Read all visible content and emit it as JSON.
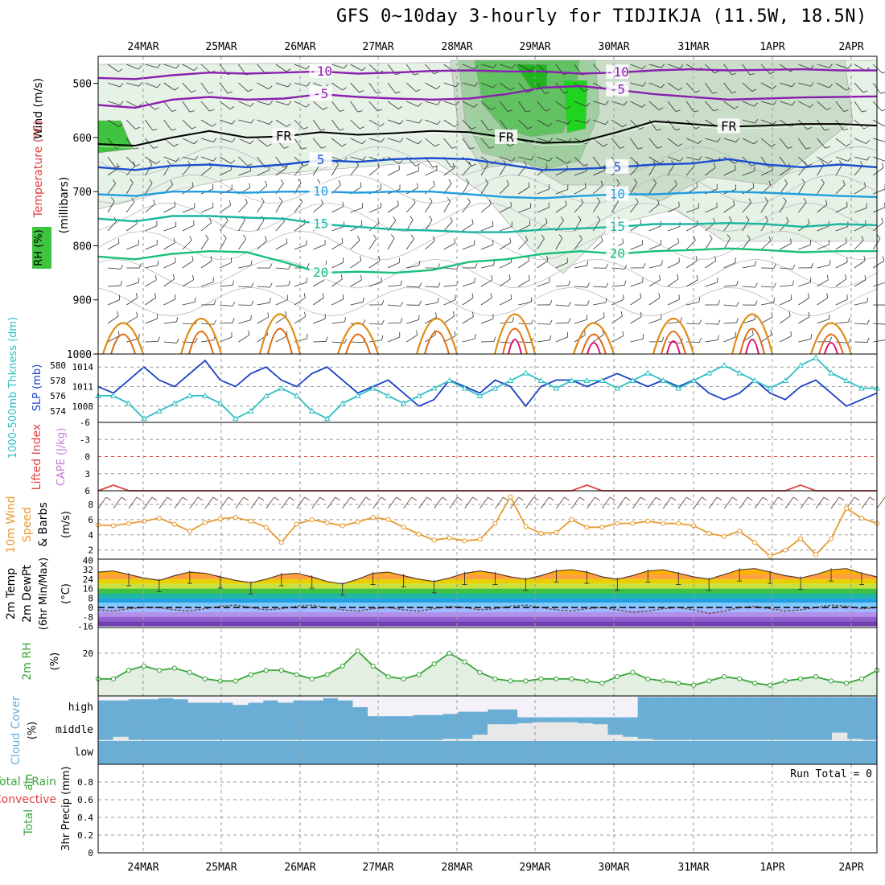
{
  "title": "GFS 0~10day 3-hourly for TIDJIKJA (11.5W, 18.5N)",
  "dates": [
    "24MAR",
    "25MAR",
    "26MAR",
    "27MAR",
    "28MAR",
    "29MAR",
    "30MAR",
    "31MAR",
    "1APR",
    "2APR"
  ],
  "colors": {
    "purple": "#8a1fb0",
    "black": "#000000",
    "blue": "#1a4ed0",
    "cyan": "#1f9ee0",
    "teal": "#19b6a0",
    "green": "#17c07a",
    "orange": "#e08a10",
    "dorange": "#e06a10",
    "magenta": "#e0106a",
    "slp": "#1a3fc7",
    "thick": "#2bbfc4",
    "cape": "#e04040",
    "wind": "#e89a30",
    "rh": "#3aa53a",
    "cloud": "#6aaed6",
    "precip": "#3aa53a"
  },
  "chart_data": [
    {
      "type": "contour",
      "panel": "upper-air",
      "ylabel_parts": [
        "Wind (m/s)",
        "Temperature (°C)",
        "RH (%)",
        "(millibars)"
      ],
      "ylabel_wind": "Wind (m/s)",
      "ylabel_temp": "Temperature (°C)",
      "ylabel_rh": "RH (%)",
      "ylabel_units": "(millibars)",
      "ylim": [
        1000,
        450
      ],
      "yticks": [
        500,
        600,
        700,
        800,
        900,
        1000
      ],
      "contours": [
        {
          "label": "-10",
          "color": "purple",
          "p": [
            490,
            492,
            485,
            480,
            482,
            480,
            478,
            482,
            480,
            477,
            476,
            478,
            478,
            482,
            480,
            476,
            474,
            476,
            475,
            474,
            476,
            476
          ]
        },
        {
          "label": "-5",
          "color": "purple",
          "p": [
            540,
            545,
            530,
            525,
            530,
            528,
            520,
            525,
            528,
            530,
            528,
            520,
            508,
            505,
            512,
            520,
            525,
            530,
            528,
            526,
            525,
            524
          ]
        },
        {
          "label": "FR",
          "color": "black",
          "p": [
            612,
            615,
            600,
            588,
            600,
            598,
            590,
            595,
            592,
            588,
            590,
            600,
            610,
            608,
            590,
            570,
            575,
            580,
            578,
            575,
            575,
            578
          ]
        },
        {
          "label": "5",
          "color": "blue",
          "p": [
            655,
            660,
            652,
            650,
            655,
            650,
            642,
            645,
            640,
            638,
            640,
            650,
            660,
            658,
            655,
            650,
            648,
            640,
            650,
            655,
            650,
            655
          ]
        },
        {
          "label": "10",
          "color": "cyan",
          "p": [
            705,
            708,
            700,
            700,
            702,
            700,
            700,
            702,
            700,
            700,
            705,
            710,
            712,
            708,
            705,
            705,
            702,
            700,
            702,
            705,
            708,
            710
          ]
        },
        {
          "label": "15",
          "color": "teal",
          "p": [
            750,
            755,
            745,
            745,
            748,
            750,
            760,
            765,
            770,
            772,
            775,
            775,
            770,
            768,
            765,
            760,
            760,
            758,
            760,
            765,
            760,
            762
          ]
        },
        {
          "label": "20",
          "color": "green",
          "p": [
            820,
            825,
            815,
            810,
            812,
            830,
            850,
            848,
            850,
            845,
            830,
            825,
            815,
            810,
            815,
            810,
            808,
            805,
            808,
            812,
            810,
            810
          ]
        }
      ]
    },
    {
      "type": "line",
      "panel": "slp-thickness",
      "ylabel_thick": "1000-500mb Thkness (dm)",
      "ylabel_slp": "SLP (mb)",
      "thick_ticks": [
        "580",
        "578",
        "576",
        "574"
      ],
      "slp_ticks": [
        "1014",
        "1011",
        "1008"
      ],
      "series": [
        {
          "name": "SLP (mb)",
          "color": "slp",
          "values": [
            1011,
            1010,
            1012,
            1014,
            1012,
            1011,
            1013,
            1015,
            1012,
            1011,
            1013,
            1014,
            1012,
            1011,
            1013,
            1014,
            1012,
            1010,
            1011,
            1012,
            1010,
            1008,
            1009,
            1012,
            1011,
            1010,
            1012,
            1011,
            1008,
            1011,
            1012,
            1012,
            1011,
            1012,
            1013,
            1012,
            1011,
            1012,
            1011,
            1012,
            1010,
            1009,
            1010,
            1012,
            1010,
            1009,
            1011,
            1012,
            1010,
            1008,
            1009,
            1010
          ]
        },
        {
          "name": "1000-500mb Thkness (dm)",
          "color": "thick",
          "values": [
            576,
            576,
            575,
            573,
            574,
            575,
            576,
            576,
            575,
            573,
            574,
            576,
            577,
            576,
            574,
            573,
            575,
            576,
            577,
            576,
            575,
            576,
            577,
            578,
            577,
            576,
            577,
            578,
            579,
            578,
            577,
            578,
            578,
            578,
            577,
            578,
            579,
            578,
            577,
            578,
            579,
            580,
            579,
            578,
            577,
            578,
            580,
            581,
            579,
            578,
            577,
            577
          ]
        }
      ]
    },
    {
      "type": "line",
      "panel": "cape-li",
      "ylabel_li": "Lifted Index",
      "ylabel_cape": "CAPE (J/kg)",
      "yticks": [
        "-6",
        "-3",
        "0",
        "3",
        "6"
      ],
      "series": [
        {
          "name": "Lifted Index",
          "color": "cape",
          "values": [
            6,
            5,
            6,
            6,
            6,
            6,
            6,
            6,
            6,
            6,
            6,
            6,
            6,
            6,
            6,
            6,
            6,
            6,
            6,
            6,
            6,
            6,
            6,
            6,
            6,
            6,
            6,
            6,
            6,
            6,
            6,
            6,
            5,
            6,
            6,
            6,
            6,
            6,
            6,
            6,
            6,
            6,
            6,
            6,
            6,
            6,
            5,
            6,
            6,
            6,
            6,
            6
          ]
        }
      ]
    },
    {
      "type": "line",
      "panel": "wind10m",
      "ylabel_a": "10m Wind",
      "ylabel_b": "Speed",
      "ylabel_c": "& Barbs",
      "ylabel_units": "(m/s)",
      "yticks": [
        "2",
        "4",
        "6",
        "8"
      ],
      "series": [
        {
          "name": "10m Wind Speed",
          "color": "wind",
          "values": [
            5.3,
            5.2,
            5.5,
            5.8,
            6.2,
            5.4,
            4.5,
            5.6,
            6.1,
            6.3,
            5.8,
            5.0,
            3.0,
            5.4,
            6.0,
            5.6,
            5.2,
            5.7,
            6.3,
            6.0,
            5.0,
            4.1,
            3.3,
            3.6,
            3.2,
            3.4,
            5.5,
            9.0,
            5.1,
            4.2,
            4.3,
            6.0,
            5.0,
            5.0,
            5.5,
            5.5,
            5.8,
            5.5,
            5.5,
            5.2,
            4.2,
            3.8,
            4.5,
            3.0,
            1.2,
            2.0,
            3.5,
            1.4,
            3.5,
            7.5,
            6.2,
            5.5
          ]
        }
      ]
    },
    {
      "type": "area",
      "panel": "temp2m",
      "ylabel_a": "2m Temp",
      "ylabel_b": "2m DewPt",
      "ylabel_c": "(6hr Min/Max)",
      "ylabel_units": "(°C)",
      "yticks": [
        "40",
        "32",
        "24",
        "16",
        "8",
        "0",
        "-8",
        "-16"
      ],
      "series": [
        {
          "name": "2m Temp",
          "color": "black",
          "values": [
            30,
            31,
            28,
            25,
            23,
            27,
            30,
            29,
            26,
            23,
            21,
            24,
            28,
            29,
            26,
            22,
            20,
            24,
            29,
            30,
            27,
            24,
            22,
            25,
            29,
            31,
            29,
            26,
            24,
            27,
            31,
            32,
            30,
            26,
            24,
            27,
            31,
            32,
            29,
            26,
            24,
            28,
            32,
            33,
            30,
            27,
            25,
            28,
            32,
            33,
            29,
            26
          ]
        },
        {
          "name": "2m DewPt",
          "color": "#6b4a3a",
          "values": [
            -2,
            -3,
            -1,
            0,
            0,
            -2,
            -3,
            -1,
            1,
            2,
            0,
            -2,
            -1,
            1,
            2,
            0,
            -2,
            -3,
            -1,
            0,
            -2,
            -3,
            -1,
            1,
            0,
            -2,
            -1,
            1,
            2,
            0,
            -2,
            -3,
            -1,
            0,
            -2,
            -4,
            -3,
            -1,
            0,
            -2,
            -5,
            -3,
            0,
            1,
            -1,
            -3,
            -2,
            0,
            2,
            1,
            -1,
            0
          ]
        }
      ]
    },
    {
      "type": "area",
      "panel": "rh2m",
      "ylabel_a": "2m RH",
      "ylabel_units": "(%)",
      "yticks": [
        "20"
      ],
      "series": [
        {
          "name": "2m RH",
          "color": "rh",
          "values": [
            8,
            8,
            12,
            14,
            12,
            13,
            11,
            8,
            7,
            7,
            10,
            12,
            12,
            10,
            8,
            10,
            14,
            21,
            14,
            9,
            8,
            10,
            15,
            20,
            16,
            11,
            8,
            7,
            7,
            8,
            8,
            8,
            7,
            6,
            9,
            11,
            8,
            7,
            6,
            5,
            7,
            9,
            8,
            6,
            5,
            7,
            8,
            9,
            7,
            6,
            8,
            12
          ]
        }
      ]
    },
    {
      "type": "heatmap",
      "panel": "cloud",
      "ylabel_a": "Cloud Cover",
      "ylabel_units": "(%)",
      "levels": [
        "high",
        "middle",
        "low"
      ],
      "high": [
        20,
        20,
        15,
        15,
        10,
        15,
        30,
        30,
        30,
        40,
        30,
        20,
        30,
        20,
        20,
        10,
        20,
        50,
        90,
        90,
        90,
        85,
        85,
        80,
        70,
        70,
        60,
        60,
        95,
        95,
        95,
        95,
        95,
        95,
        95,
        95,
        5,
        5,
        5,
        5,
        5,
        5,
        5,
        5,
        5,
        5,
        5,
        5,
        5,
        5,
        5,
        5
      ],
      "middle": [
        5,
        20,
        5,
        5,
        5,
        5,
        5,
        5,
        5,
        5,
        5,
        5,
        5,
        5,
        5,
        5,
        5,
        5,
        5,
        5,
        5,
        5,
        5,
        10,
        10,
        30,
        80,
        80,
        85,
        90,
        90,
        90,
        85,
        80,
        30,
        20,
        10,
        5,
        5,
        5,
        5,
        5,
        5,
        5,
        5,
        5,
        5,
        5,
        5,
        40,
        10,
        5
      ],
      "low": [
        0,
        0,
        0,
        0,
        0,
        0,
        0,
        0,
        0,
        0,
        0,
        0,
        0,
        0,
        0,
        0,
        0,
        0,
        0,
        0,
        0,
        0,
        0,
        0,
        0,
        0,
        0,
        0,
        0,
        0,
        0,
        0,
        0,
        0,
        0,
        0,
        0,
        0,
        0,
        0,
        0,
        0,
        0,
        0,
        0,
        0,
        0,
        0,
        0,
        0,
        0,
        0
      ]
    },
    {
      "type": "bar",
      "panel": "precip",
      "ylabel_a": "Total / Rain",
      "ylabel_b": "Convective",
      "ylabel_c": "3hr Precip (mm)",
      "yticks": [
        "0",
        "0.2",
        "0.4",
        "0.6",
        "0.8"
      ],
      "run_total": "Run Total = 0",
      "values": [
        0,
        0,
        0,
        0,
        0,
        0,
        0,
        0,
        0,
        0,
        0,
        0,
        0,
        0,
        0,
        0,
        0,
        0,
        0,
        0,
        0,
        0,
        0,
        0,
        0,
        0,
        0,
        0,
        0,
        0,
        0,
        0,
        0,
        0,
        0,
        0,
        0,
        0,
        0,
        0,
        0,
        0,
        0,
        0,
        0,
        0,
        0,
        0,
        0,
        0,
        0,
        0
      ]
    }
  ]
}
